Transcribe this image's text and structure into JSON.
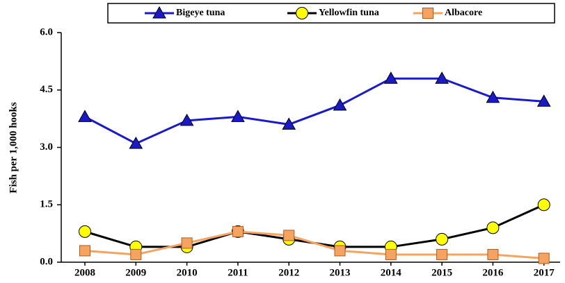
{
  "chart_data": {
    "type": "line",
    "y_label": "Fish per 1,000 hooks",
    "categories": [
      "2008",
      "2009",
      "2010",
      "2011",
      "2012",
      "2013",
      "2014",
      "2015",
      "2016",
      "2017"
    ],
    "series": [
      {
        "name": "Bigeye tuna",
        "color": "#1a1ac8",
        "marker": "triangle",
        "marker_color": "#1a1ac8",
        "values": [
          3.8,
          3.1,
          3.7,
          3.8,
          3.6,
          4.1,
          4.8,
          4.8,
          4.3,
          4.2
        ]
      },
      {
        "name": "Yellowfin tuna",
        "color": "#000000",
        "marker": "circle",
        "marker_color": "#ffff00",
        "values": [
          0.8,
          0.4,
          0.4,
          0.8,
          0.6,
          0.4,
          0.4,
          0.6,
          0.9,
          1.5
        ]
      },
      {
        "name": "Albacore",
        "color": "#f4a460",
        "marker": "square",
        "marker_color": "#f4a460",
        "values": [
          0.3,
          0.2,
          0.5,
          0.8,
          0.7,
          0.3,
          0.2,
          0.2,
          0.2,
          0.1
        ]
      }
    ],
    "ylim": [
      0,
      6
    ],
    "yticks": [
      {
        "value": 0,
        "label": "0.0"
      },
      {
        "value": 1.5,
        "label": "1.5"
      },
      {
        "value": 3,
        "label": "3.0"
      },
      {
        "value": 4.5,
        "label": "4.5"
      },
      {
        "value": 6,
        "label": "6.0"
      }
    ],
    "legend": "top"
  }
}
